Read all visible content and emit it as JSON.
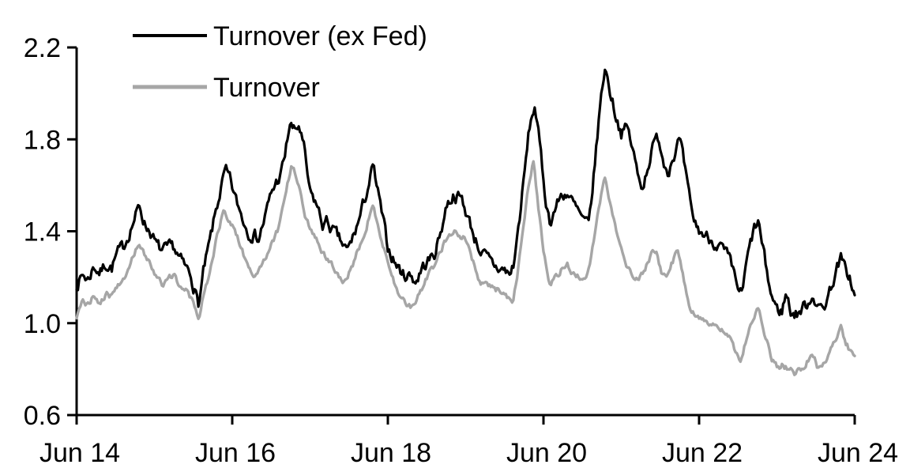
{
  "chart_data": {
    "type": "line",
    "title": "",
    "xlabel": "",
    "ylabel": "",
    "x_axis": {
      "tick_labels": [
        "Jun 14",
        "Jun 16",
        "Jun 18",
        "Jun 20",
        "Jun 22",
        "Jun 24"
      ],
      "tick_positions_years": [
        0,
        2,
        4,
        6,
        8,
        10
      ],
      "range_years": [
        0,
        10
      ]
    },
    "y_axis": {
      "tick_labels": [
        "0.6",
        "1.0",
        "1.4",
        "1.8",
        "2.2"
      ],
      "tick_values": [
        0.6,
        1.0,
        1.4,
        1.8,
        2.2
      ],
      "range": [
        0.6,
        2.2
      ]
    },
    "grid": "off",
    "legend_position": "top-left",
    "axis_color": "#000000",
    "series": [
      {
        "name": "Turnover (ex Fed)",
        "color": "#000000",
        "stroke_width": 3.2,
        "jitter": 0.024,
        "points": [
          [
            0,
            1.17
          ],
          [
            0.08,
            1.21
          ],
          [
            0.15,
            1.19
          ],
          [
            0.22,
            1.25
          ],
          [
            0.3,
            1.22
          ],
          [
            0.38,
            1.26
          ],
          [
            0.45,
            1.24
          ],
          [
            0.52,
            1.3
          ],
          [
            0.6,
            1.33
          ],
          [
            0.68,
            1.4
          ],
          [
            0.75,
            1.46
          ],
          [
            0.81,
            1.51
          ],
          [
            0.88,
            1.43
          ],
          [
            0.95,
            1.4
          ],
          [
            1.02,
            1.34
          ],
          [
            1.1,
            1.31
          ],
          [
            1.18,
            1.32
          ],
          [
            1.25,
            1.33
          ],
          [
            1.32,
            1.28
          ],
          [
            1.4,
            1.24
          ],
          [
            1.47,
            1.21
          ],
          [
            1.53,
            1.13
          ],
          [
            1.57,
            1.08
          ],
          [
            1.63,
            1.22
          ],
          [
            1.7,
            1.33
          ],
          [
            1.78,
            1.47
          ],
          [
            1.85,
            1.58
          ],
          [
            1.91,
            1.66
          ],
          [
            1.97,
            1.62
          ],
          [
            2.05,
            1.53
          ],
          [
            2.12,
            1.47
          ],
          [
            2.2,
            1.4
          ],
          [
            2.28,
            1.39
          ],
          [
            2.34,
            1.37
          ],
          [
            2.42,
            1.46
          ],
          [
            2.5,
            1.56
          ],
          [
            2.56,
            1.61
          ],
          [
            2.62,
            1.64
          ],
          [
            2.68,
            1.73
          ],
          [
            2.74,
            1.87
          ],
          [
            2.8,
            1.83
          ],
          [
            2.86,
            1.86
          ],
          [
            2.92,
            1.76
          ],
          [
            3.0,
            1.56
          ],
          [
            3.08,
            1.52
          ],
          [
            3.16,
            1.43
          ],
          [
            3.22,
            1.44
          ],
          [
            3.3,
            1.4
          ],
          [
            3.38,
            1.36
          ],
          [
            3.48,
            1.31
          ],
          [
            3.56,
            1.38
          ],
          [
            3.65,
            1.47
          ],
          [
            3.72,
            1.56
          ],
          [
            3.81,
            1.68
          ],
          [
            3.88,
            1.55
          ],
          [
            4.0,
            1.33
          ],
          [
            4.1,
            1.26
          ],
          [
            4.2,
            1.21
          ],
          [
            4.3,
            1.21
          ],
          [
            4.36,
            1.18
          ],
          [
            4.44,
            1.24
          ],
          [
            4.52,
            1.27
          ],
          [
            4.6,
            1.3
          ],
          [
            4.68,
            1.4
          ],
          [
            4.76,
            1.52
          ],
          [
            4.85,
            1.56
          ],
          [
            4.95,
            1.54
          ],
          [
            5.05,
            1.44
          ],
          [
            5.12,
            1.37
          ],
          [
            5.2,
            1.31
          ],
          [
            5.3,
            1.27
          ],
          [
            5.4,
            1.24
          ],
          [
            5.5,
            1.23
          ],
          [
            5.57,
            1.21
          ],
          [
            5.62,
            1.26
          ],
          [
            5.68,
            1.42
          ],
          [
            5.75,
            1.63
          ],
          [
            5.82,
            1.85
          ],
          [
            5.89,
            1.95
          ],
          [
            5.95,
            1.78
          ],
          [
            6.02,
            1.56
          ],
          [
            6.08,
            1.44
          ],
          [
            6.15,
            1.5
          ],
          [
            6.22,
            1.55
          ],
          [
            6.3,
            1.57
          ],
          [
            6.38,
            1.52
          ],
          [
            6.45,
            1.48
          ],
          [
            6.52,
            1.44
          ],
          [
            6.58,
            1.42
          ],
          [
            6.65,
            1.65
          ],
          [
            6.72,
            1.92
          ],
          [
            6.79,
            2.12
          ],
          [
            6.85,
            2.02
          ],
          [
            6.92,
            1.92
          ],
          [
            7.0,
            1.83
          ],
          [
            7.08,
            1.85
          ],
          [
            7.15,
            1.75
          ],
          [
            7.22,
            1.63
          ],
          [
            7.28,
            1.6
          ],
          [
            7.35,
            1.7
          ],
          [
            7.42,
            1.78
          ],
          [
            7.48,
            1.81
          ],
          [
            7.55,
            1.7
          ],
          [
            7.6,
            1.67
          ],
          [
            7.68,
            1.74
          ],
          [
            7.75,
            1.8
          ],
          [
            7.82,
            1.66
          ],
          [
            7.9,
            1.48
          ],
          [
            7.98,
            1.41
          ],
          [
            8.08,
            1.38
          ],
          [
            8.18,
            1.36
          ],
          [
            8.28,
            1.33
          ],
          [
            8.38,
            1.28
          ],
          [
            8.48,
            1.17
          ],
          [
            8.55,
            1.12
          ],
          [
            8.62,
            1.28
          ],
          [
            8.7,
            1.4
          ],
          [
            8.76,
            1.44
          ],
          [
            8.84,
            1.28
          ],
          [
            8.92,
            1.13
          ],
          [
            9.0,
            1.06
          ],
          [
            9.06,
            1.05
          ],
          [
            9.12,
            1.13
          ],
          [
            9.18,
            1.05
          ],
          [
            9.25,
            1.04
          ],
          [
            9.32,
            1.06
          ],
          [
            9.4,
            1.09
          ],
          [
            9.47,
            1.13
          ],
          [
            9.53,
            1.06
          ],
          [
            9.6,
            1.07
          ],
          [
            9.68,
            1.14
          ],
          [
            9.75,
            1.22
          ],
          [
            9.82,
            1.28
          ],
          [
            9.88,
            1.23
          ],
          [
            9.94,
            1.2
          ],
          [
            10,
            1.11
          ]
        ]
      },
      {
        "name": "Turnover",
        "color": "#a6a6a6",
        "stroke_width": 3.4,
        "jitter": 0.012,
        "points": [
          [
            0,
            1.03
          ],
          [
            0.08,
            1.09
          ],
          [
            0.15,
            1.08
          ],
          [
            0.22,
            1.12
          ],
          [
            0.3,
            1.09
          ],
          [
            0.38,
            1.13
          ],
          [
            0.45,
            1.11
          ],
          [
            0.52,
            1.16
          ],
          [
            0.6,
            1.18
          ],
          [
            0.68,
            1.25
          ],
          [
            0.75,
            1.31
          ],
          [
            0.81,
            1.35
          ],
          [
            0.88,
            1.29
          ],
          [
            0.95,
            1.26
          ],
          [
            1.02,
            1.21
          ],
          [
            1.1,
            1.17
          ],
          [
            1.18,
            1.19
          ],
          [
            1.25,
            1.21
          ],
          [
            1.32,
            1.17
          ],
          [
            1.4,
            1.14
          ],
          [
            1.47,
            1.11
          ],
          [
            1.53,
            1.05
          ],
          [
            1.57,
            1.01
          ],
          [
            1.63,
            1.12
          ],
          [
            1.7,
            1.21
          ],
          [
            1.78,
            1.33
          ],
          [
            1.85,
            1.44
          ],
          [
            1.9,
            1.49
          ],
          [
            1.97,
            1.45
          ],
          [
            2.05,
            1.39
          ],
          [
            2.12,
            1.32
          ],
          [
            2.2,
            1.25
          ],
          [
            2.28,
            1.2
          ],
          [
            2.35,
            1.23
          ],
          [
            2.42,
            1.28
          ],
          [
            2.5,
            1.35
          ],
          [
            2.58,
            1.4
          ],
          [
            2.65,
            1.5
          ],
          [
            2.72,
            1.62
          ],
          [
            2.76,
            1.69
          ],
          [
            2.82,
            1.64
          ],
          [
            2.88,
            1.57
          ],
          [
            2.95,
            1.46
          ],
          [
            3.02,
            1.4
          ],
          [
            3.1,
            1.36
          ],
          [
            3.18,
            1.3
          ],
          [
            3.26,
            1.27
          ],
          [
            3.35,
            1.22
          ],
          [
            3.45,
            1.18
          ],
          [
            3.55,
            1.26
          ],
          [
            3.65,
            1.35
          ],
          [
            3.72,
            1.42
          ],
          [
            3.8,
            1.51
          ],
          [
            3.88,
            1.42
          ],
          [
            4.0,
            1.26
          ],
          [
            4.1,
            1.16
          ],
          [
            4.2,
            1.1
          ],
          [
            4.29,
            1.07
          ],
          [
            4.38,
            1.12
          ],
          [
            4.48,
            1.18
          ],
          [
            4.58,
            1.24
          ],
          [
            4.68,
            1.32
          ],
          [
            4.78,
            1.39
          ],
          [
            4.88,
            1.4
          ],
          [
            4.98,
            1.37
          ],
          [
            5.08,
            1.28
          ],
          [
            5.18,
            1.18
          ],
          [
            5.28,
            1.17
          ],
          [
            5.38,
            1.15
          ],
          [
            5.48,
            1.13
          ],
          [
            5.55,
            1.1
          ],
          [
            5.6,
            1.07
          ],
          [
            5.66,
            1.2
          ],
          [
            5.72,
            1.38
          ],
          [
            5.8,
            1.58
          ],
          [
            5.87,
            1.7
          ],
          [
            5.93,
            1.52
          ],
          [
            6.0,
            1.31
          ],
          [
            6.08,
            1.16
          ],
          [
            6.15,
            1.2
          ],
          [
            6.22,
            1.23
          ],
          [
            6.3,
            1.26
          ],
          [
            6.38,
            1.22
          ],
          [
            6.45,
            1.21
          ],
          [
            6.52,
            1.19
          ],
          [
            6.6,
            1.26
          ],
          [
            6.68,
            1.44
          ],
          [
            6.75,
            1.57
          ],
          [
            6.79,
            1.63
          ],
          [
            6.85,
            1.52
          ],
          [
            6.92,
            1.42
          ],
          [
            7.0,
            1.33
          ],
          [
            7.08,
            1.25
          ],
          [
            7.15,
            1.21
          ],
          [
            7.22,
            1.19
          ],
          [
            7.3,
            1.24
          ],
          [
            7.38,
            1.3
          ],
          [
            7.45,
            1.32
          ],
          [
            7.52,
            1.22
          ],
          [
            7.58,
            1.21
          ],
          [
            7.65,
            1.26
          ],
          [
            7.72,
            1.31
          ],
          [
            7.8,
            1.2
          ],
          [
            7.88,
            1.08
          ],
          [
            7.96,
            1.03
          ],
          [
            8.05,
            1.01
          ],
          [
            8.15,
            1.0
          ],
          [
            8.25,
            0.99
          ],
          [
            8.35,
            0.97
          ],
          [
            8.45,
            0.89
          ],
          [
            8.54,
            0.84
          ],
          [
            8.62,
            0.95
          ],
          [
            8.7,
            1.03
          ],
          [
            8.77,
            1.07
          ],
          [
            8.85,
            0.94
          ],
          [
            8.93,
            0.85
          ],
          [
            9.0,
            0.81
          ],
          [
            9.08,
            0.82
          ],
          [
            9.15,
            0.8
          ],
          [
            9.22,
            0.78
          ],
          [
            9.3,
            0.8
          ],
          [
            9.38,
            0.83
          ],
          [
            9.45,
            0.87
          ],
          [
            9.52,
            0.81
          ],
          [
            9.6,
            0.82
          ],
          [
            9.68,
            0.88
          ],
          [
            9.75,
            0.93
          ],
          [
            9.82,
            0.98
          ],
          [
            9.88,
            0.92
          ],
          [
            9.94,
            0.88
          ],
          [
            10,
            0.85
          ]
        ]
      }
    ]
  }
}
